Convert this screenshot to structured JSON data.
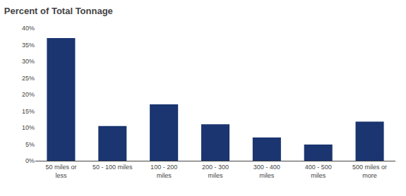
{
  "chart_data": {
    "type": "bar",
    "title": "Percent of Total Tonnage",
    "categories": [
      "50 miles or\nless",
      "50 - 100 miles",
      "100 - 200\nmiles",
      "200 - 300\nmiles",
      "300 - 400\nmiles",
      "400 - 500\nmiles",
      "500 miles or\nmore"
    ],
    "values": [
      0.37,
      0.105,
      0.17,
      0.11,
      0.07,
      0.049,
      0.118
    ],
    "color": "#1a3570",
    "ylim": [
      0,
      0.4
    ],
    "yticks": [
      {
        "value": 0.0,
        "label": "0%"
      },
      {
        "value": 0.05,
        "label": "5%"
      },
      {
        "value": 0.1,
        "label": "10%"
      },
      {
        "value": 0.15,
        "label": "15%"
      },
      {
        "value": 0.2,
        "label": "20%"
      },
      {
        "value": 0.25,
        "label": "25%"
      },
      {
        "value": 0.3,
        "label": "30%"
      },
      {
        "value": 0.35,
        "label": "35%"
      },
      {
        "value": 0.4,
        "label": "40%"
      }
    ],
    "grid": false
  }
}
